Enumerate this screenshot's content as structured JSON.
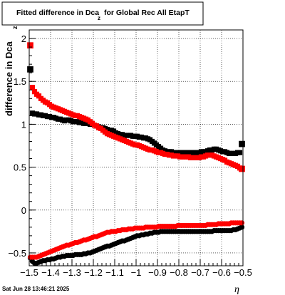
{
  "chart_data": {
    "type": "scatter",
    "title": "Fitted difference in Dca",
    "title_subscript": "z",
    "title_suffix": "for Global Rec All EtapT",
    "ylabel": "difference in Dca",
    "ylabel_subscript": "z",
    "xlabel": "η",
    "xlim": [
      -1.5,
      -0.5
    ],
    "ylim": [
      -0.65,
      2.1
    ],
    "grid": true,
    "x_ticks": [
      -1.5,
      -1.4,
      -1.3,
      -1.2,
      -1.1,
      -1.0,
      -0.9,
      -0.8,
      -0.7,
      -0.6,
      -0.5
    ],
    "x_tick_labels": [
      "−1.5",
      "−1.4",
      "−1.3",
      "−1.2",
      "−1.1",
      "−1",
      "−0.9",
      "−0.8",
      "−0.7",
      "−0.6",
      "−0.5"
    ],
    "y_ticks": [
      -0.5,
      0,
      0.5,
      1,
      1.5,
      2
    ],
    "y_tick_labels": [
      "−0.5",
      "0",
      "0.5",
      "1",
      "1.5",
      "2"
    ],
    "series": [
      {
        "color": "#000000",
        "x": [
          -1.495,
          -1.485,
          -1.475,
          -1.465,
          -1.455,
          -1.445,
          -1.435,
          -1.425,
          -1.415,
          -1.405,
          -1.395,
          -1.385,
          -1.375,
          -1.365,
          -1.355,
          -1.345,
          -1.335,
          -1.325,
          -1.315,
          -1.305,
          -1.295,
          -1.285,
          -1.275,
          -1.265,
          -1.255,
          -1.245,
          -1.235,
          -1.225,
          -1.215,
          -1.205,
          -1.195,
          -1.185,
          -1.175,
          -1.165,
          -1.155,
          -1.145,
          -1.135,
          -1.125,
          -1.115,
          -1.105,
          -1.095,
          -1.085,
          -1.075,
          -1.065,
          -1.055,
          -1.045,
          -1.035,
          -1.025,
          -1.015,
          -1.005,
          -0.995,
          -0.985,
          -0.975,
          -0.965,
          -0.955,
          -0.945,
          -0.935,
          -0.925,
          -0.915,
          -0.905,
          -0.895,
          -0.885,
          -0.875,
          -0.865,
          -0.855,
          -0.845,
          -0.835,
          -0.825,
          -0.815,
          -0.805,
          -0.795,
          -0.785,
          -0.775,
          -0.765,
          -0.755,
          -0.745,
          -0.735,
          -0.725,
          -0.715,
          -0.705,
          -0.695,
          -0.685,
          -0.675,
          -0.665,
          -0.655,
          -0.645,
          -0.635,
          -0.625,
          -0.615,
          -0.605,
          -0.595,
          -0.585,
          -0.575,
          -0.565,
          -0.555,
          -0.545,
          -0.535,
          -0.525,
          -0.515,
          -0.505
        ],
        "y_upper": [
          1.64,
          1.13,
          1.12,
          1.12,
          1.11,
          1.11,
          1.1,
          1.1,
          1.09,
          1.09,
          1.08,
          1.08,
          1.07,
          1.06,
          1.06,
          1.05,
          1.04,
          1.05,
          1.05,
          1.04,
          1.03,
          1.03,
          1.03,
          1.02,
          1.02,
          1.01,
          1.01,
          1.01,
          1.0,
          1.0,
          0.99,
          0.98,
          0.97,
          0.96,
          0.96,
          0.95,
          0.94,
          0.93,
          0.93,
          0.92,
          0.9,
          0.89,
          0.88,
          0.88,
          0.87,
          0.87,
          0.87,
          0.87,
          0.86,
          0.86,
          0.86,
          0.85,
          0.85,
          0.84,
          0.84,
          0.83,
          0.82,
          0.8,
          0.78,
          0.76,
          0.74,
          0.72,
          0.7,
          0.69,
          0.68,
          0.68,
          0.68,
          0.67,
          0.67,
          0.67,
          0.67,
          0.67,
          0.67,
          0.67,
          0.67,
          0.67,
          0.67,
          0.67,
          0.67,
          0.67,
          0.68,
          0.68,
          0.68,
          0.69,
          0.7,
          0.7,
          0.71,
          0.71,
          0.7,
          0.69,
          0.68,
          0.68,
          0.67,
          0.66,
          0.66,
          0.66,
          0.66,
          0.67,
          0.67,
          0.77
        ],
        "y_lower": [
          -0.56,
          -0.6,
          -0.62,
          -0.62,
          -0.61,
          -0.6,
          -0.59,
          -0.59,
          -0.58,
          -0.58,
          -0.57,
          -0.57,
          -0.56,
          -0.55,
          -0.55,
          -0.54,
          -0.54,
          -0.53,
          -0.53,
          -0.53,
          -0.53,
          -0.52,
          -0.52,
          -0.52,
          -0.52,
          -0.51,
          -0.51,
          -0.5,
          -0.5,
          -0.49,
          -0.48,
          -0.47,
          -0.46,
          -0.45,
          -0.44,
          -0.43,
          -0.42,
          -0.42,
          -0.41,
          -0.4,
          -0.39,
          -0.38,
          -0.37,
          -0.36,
          -0.36,
          -0.35,
          -0.34,
          -0.33,
          -0.32,
          -0.31,
          -0.3,
          -0.3,
          -0.29,
          -0.29,
          -0.28,
          -0.28,
          -0.27,
          -0.27,
          -0.26,
          -0.26,
          -0.26,
          -0.25,
          -0.25,
          -0.25,
          -0.25,
          -0.25,
          -0.25,
          -0.25,
          -0.25,
          -0.25,
          -0.25,
          -0.25,
          -0.25,
          -0.25,
          -0.25,
          -0.25,
          -0.25,
          -0.25,
          -0.25,
          -0.25,
          -0.25,
          -0.25,
          -0.25,
          -0.25,
          -0.25,
          -0.25,
          -0.24,
          -0.24,
          -0.24,
          -0.24,
          -0.24,
          -0.24,
          -0.24,
          -0.24,
          -0.24,
          -0.23,
          -0.23,
          -0.22,
          -0.21,
          -0.2
        ]
      },
      {
        "color": "#ff0000",
        "x": [
          -1.495,
          -1.485,
          -1.475,
          -1.465,
          -1.455,
          -1.445,
          -1.435,
          -1.425,
          -1.415,
          -1.405,
          -1.395,
          -1.385,
          -1.375,
          -1.365,
          -1.355,
          -1.345,
          -1.335,
          -1.325,
          -1.315,
          -1.305,
          -1.295,
          -1.285,
          -1.275,
          -1.265,
          -1.255,
          -1.245,
          -1.235,
          -1.225,
          -1.215,
          -1.205,
          -1.195,
          -1.185,
          -1.175,
          -1.165,
          -1.155,
          -1.145,
          -1.135,
          -1.125,
          -1.115,
          -1.105,
          -1.095,
          -1.085,
          -1.075,
          -1.065,
          -1.055,
          -1.045,
          -1.035,
          -1.025,
          -1.015,
          -1.005,
          -0.995,
          -0.985,
          -0.975,
          -0.965,
          -0.955,
          -0.945,
          -0.935,
          -0.925,
          -0.915,
          -0.905,
          -0.895,
          -0.885,
          -0.875,
          -0.865,
          -0.855,
          -0.845,
          -0.835,
          -0.825,
          -0.815,
          -0.805,
          -0.795,
          -0.785,
          -0.775,
          -0.765,
          -0.755,
          -0.745,
          -0.735,
          -0.725,
          -0.715,
          -0.705,
          -0.695,
          -0.685,
          -0.675,
          -0.665,
          -0.655,
          -0.645,
          -0.635,
          -0.625,
          -0.615,
          -0.605,
          -0.595,
          -0.585,
          -0.575,
          -0.565,
          -0.555,
          -0.545,
          -0.535,
          -0.525,
          -0.515,
          -0.505
        ],
        "y_upper": [
          1.92,
          1.43,
          1.38,
          1.35,
          1.33,
          1.3,
          1.28,
          1.26,
          1.25,
          1.23,
          1.21,
          1.2,
          1.19,
          1.18,
          1.17,
          1.16,
          1.15,
          1.14,
          1.13,
          1.12,
          1.11,
          1.1,
          1.1,
          1.09,
          1.08,
          1.07,
          1.06,
          1.05,
          1.03,
          1.01,
          0.99,
          0.98,
          0.96,
          0.95,
          0.93,
          0.91,
          0.89,
          0.88,
          0.87,
          0.86,
          0.85,
          0.84,
          0.83,
          0.82,
          0.81,
          0.8,
          0.79,
          0.78,
          0.77,
          0.76,
          0.76,
          0.75,
          0.74,
          0.73,
          0.72,
          0.71,
          0.7,
          0.7,
          0.69,
          0.68,
          0.67,
          0.67,
          0.66,
          0.65,
          0.65,
          0.64,
          0.64,
          0.63,
          0.63,
          0.63,
          0.62,
          0.62,
          0.62,
          0.62,
          0.62,
          0.61,
          0.61,
          0.61,
          0.61,
          0.61,
          0.62,
          0.62,
          0.63,
          0.64,
          0.64,
          0.64,
          0.63,
          0.62,
          0.61,
          0.6,
          0.59,
          0.58,
          0.56,
          0.55,
          0.54,
          0.53,
          0.52,
          0.51,
          0.49,
          0.48
        ],
        "y_lower": [
          -0.55,
          -0.55,
          -0.55,
          -0.55,
          -0.54,
          -0.53,
          -0.52,
          -0.51,
          -0.5,
          -0.49,
          -0.48,
          -0.47,
          -0.46,
          -0.45,
          -0.44,
          -0.43,
          -0.42,
          -0.41,
          -0.41,
          -0.4,
          -0.39,
          -0.38,
          -0.38,
          -0.37,
          -0.36,
          -0.35,
          -0.35,
          -0.34,
          -0.33,
          -0.32,
          -0.31,
          -0.31,
          -0.3,
          -0.29,
          -0.28,
          -0.27,
          -0.26,
          -0.26,
          -0.25,
          -0.25,
          -0.25,
          -0.24,
          -0.24,
          -0.23,
          -0.23,
          -0.23,
          -0.22,
          -0.22,
          -0.22,
          -0.21,
          -0.21,
          -0.21,
          -0.21,
          -0.21,
          -0.2,
          -0.2,
          -0.2,
          -0.2,
          -0.2,
          -0.2,
          -0.19,
          -0.19,
          -0.19,
          -0.19,
          -0.19,
          -0.19,
          -0.19,
          -0.19,
          -0.19,
          -0.18,
          -0.18,
          -0.18,
          -0.18,
          -0.18,
          -0.18,
          -0.18,
          -0.18,
          -0.18,
          -0.18,
          -0.18,
          -0.18,
          -0.18,
          -0.18,
          -0.17,
          -0.17,
          -0.17,
          -0.17,
          -0.17,
          -0.16,
          -0.16,
          -0.16,
          -0.16,
          -0.16,
          -0.16,
          -0.15,
          -0.15,
          -0.15,
          -0.15,
          -0.15,
          -0.15
        ]
      }
    ]
  },
  "footer": {
    "timestamp": "Sat Jun 28 13:46:21 2025"
  }
}
